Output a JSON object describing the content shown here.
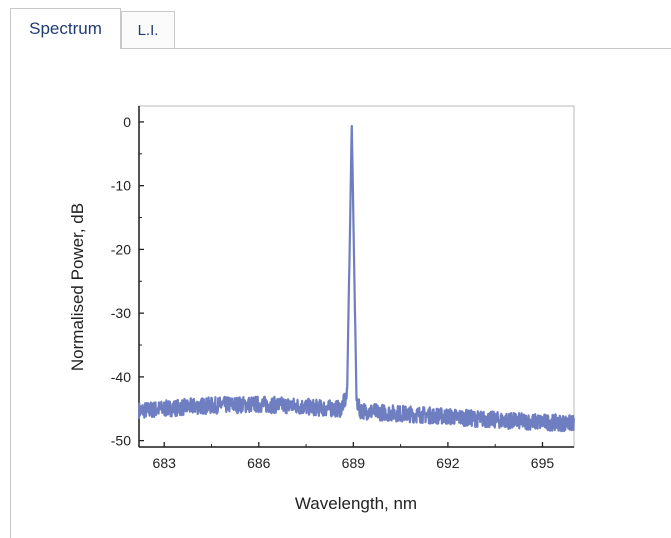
{
  "tabs": [
    {
      "label": "Spectrum",
      "active": true
    },
    {
      "label": "L.I.",
      "active": false
    }
  ],
  "colors": {
    "trace": "#6f7ec0",
    "tab_text": "#1f3b73",
    "border": "#c9c9c9"
  },
  "chart_data": {
    "type": "line",
    "title": "",
    "xlabel": "Wavelength, nm",
    "ylabel": "Normalised Power, dB",
    "xlim": [
      682.2,
      696.0
    ],
    "ylim": [
      -51,
      2.5
    ],
    "xticks": [
      683,
      686,
      689,
      692,
      695
    ],
    "yticks": [
      0,
      -10,
      -20,
      -30,
      -40,
      -50
    ],
    "grid": false,
    "series": [
      {
        "x": [
          682.2,
          683.0,
          684.0,
          685.0,
          686.0,
          687.0,
          688.0,
          688.6,
          688.8,
          688.9,
          688.95,
          689.0,
          689.1,
          689.2,
          689.4,
          690.0,
          691.0,
          692.0,
          693.0,
          694.0,
          695.0,
          696.0
        ],
        "y": [
          -45.3,
          -45.0,
          -44.6,
          -44.4,
          -44.3,
          -44.5,
          -44.9,
          -45.0,
          -43.0,
          -15.0,
          0.0,
          -15.0,
          -43.5,
          -45.2,
          -45.4,
          -45.6,
          -45.9,
          -46.2,
          -46.6,
          -46.9,
          -47.1,
          -47.3
        ]
      }
    ]
  }
}
